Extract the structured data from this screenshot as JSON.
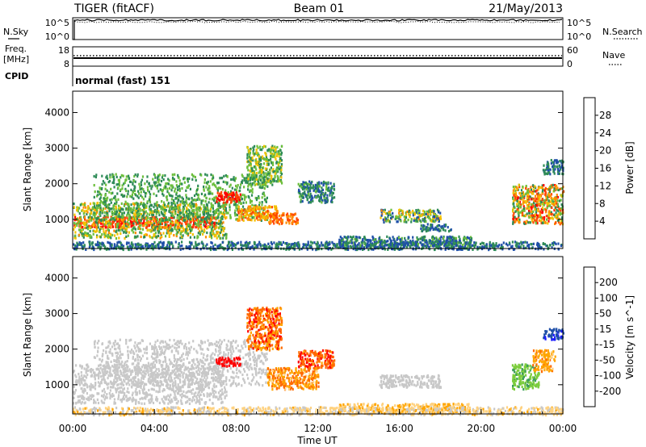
{
  "header": {
    "radar": "TIGER (fitACF)",
    "beam": "Beam 01",
    "date": "21/May/2013"
  },
  "top_panels": {
    "nsky_label": "N.Sky",
    "nsearch_label": "N.Search",
    "nsky_ticks": [
      "10^5",
      "10^0"
    ],
    "nsearch_ticks": [
      "10^5",
      "10^0"
    ],
    "freq_label_1": "Freq.",
    "freq_label_2": "[MHz]",
    "freq_ticks": [
      "18",
      "8"
    ],
    "nave_label": "Nave",
    "nave_ticks": [
      "60",
      "0"
    ],
    "cpid_label": "CPID",
    "cpid_text": "normal (fast) 151"
  },
  "colors": {
    "power": [
      "#1a1aff",
      "#1f4fa8",
      "#2e8b57",
      "#6cbf3c",
      "#f2c200",
      "#ff8c00",
      "#ff4500",
      "#ff0000"
    ],
    "velocity": [
      "#ff0000",
      "#ff6a00",
      "#ffa500",
      "#ffd280",
      "#c8c8c8",
      "#7ccd3c",
      "#3c9c5c",
      "#1f4fa8",
      "#1a1aff"
    ]
  },
  "chart_data": [
    {
      "type": "heatmap",
      "name": "power",
      "ylabel": "Slant Range [km]",
      "yticks": [
        "4000",
        "3000",
        "2000",
        "1000"
      ],
      "ylim": [
        180,
        4600
      ],
      "xlim": [
        0,
        24
      ],
      "colorbar_label": "Power [dB]",
      "colorbar_ticks": [
        "28",
        "24",
        "20",
        "16",
        "12",
        "8",
        "4"
      ],
      "colorbar_range": [
        0,
        32
      ],
      "bands": [
        {
          "t0": 0.0,
          "t1": 7.0,
          "r0": 800,
          "r1": 1100,
          "v0": 24,
          "v1": 30
        },
        {
          "t0": 0.0,
          "t1": 7.5,
          "r0": 500,
          "r1": 1500,
          "v0": 8,
          "v1": 22
        },
        {
          "t0": 1.0,
          "t1": 9.5,
          "r0": 1000,
          "r1": 2300,
          "v0": 8,
          "v1": 16
        },
        {
          "t0": 7.0,
          "t1": 8.2,
          "r0": 1500,
          "r1": 1800,
          "v0": 26,
          "v1": 30
        },
        {
          "t0": 8.0,
          "t1": 10.0,
          "r0": 1000,
          "r1": 1400,
          "v0": 16,
          "v1": 26
        },
        {
          "t0": 9.5,
          "t1": 11.0,
          "r0": 900,
          "r1": 1200,
          "v0": 20,
          "v1": 28
        },
        {
          "t0": 8.5,
          "t1": 10.2,
          "r0": 2000,
          "r1": 3100,
          "v0": 8,
          "v1": 18
        },
        {
          "t0": 11.0,
          "t1": 12.8,
          "r0": 1500,
          "r1": 2100,
          "v0": 4,
          "v1": 14
        },
        {
          "t0": 13.0,
          "t1": 19.5,
          "r0": 250,
          "r1": 550,
          "v0": 4,
          "v1": 14
        },
        {
          "t0": 15.0,
          "t1": 18.0,
          "r0": 950,
          "r1": 1300,
          "v0": 4,
          "v1": 22
        },
        {
          "t0": 17.0,
          "t1": 18.5,
          "r0": 700,
          "r1": 900,
          "v0": 4,
          "v1": 12
        },
        {
          "t0": 21.5,
          "t1": 24.0,
          "r0": 900,
          "r1": 2000,
          "v0": 8,
          "v1": 30
        },
        {
          "t0": 23.0,
          "t1": 24.0,
          "r0": 2300,
          "r1": 2700,
          "v0": 4,
          "v1": 12
        },
        {
          "t0": 0.0,
          "t1": 24.0,
          "r0": 180,
          "r1": 400,
          "v0": 4,
          "v1": 12
        }
      ]
    },
    {
      "type": "heatmap",
      "name": "velocity",
      "ylabel": "Slant Range [km]",
      "yticks": [
        "4000",
        "3000",
        "2000",
        "1000"
      ],
      "ylim": [
        180,
        4600
      ],
      "xlim": [
        0,
        24
      ],
      "xlabel": "Time UT",
      "xticks": [
        "00:00",
        "04:00",
        "08:00",
        "12:00",
        "16:00",
        "20:00",
        "00:00"
      ],
      "colorbar_label": "Velocity [m s^-1]",
      "colorbar_ticks": [
        "200",
        "100",
        "50",
        "15",
        "-15",
        "-50",
        "-100",
        "-200"
      ],
      "colorbar_range": [
        -250,
        250
      ],
      "bands": [
        {
          "t0": 0.0,
          "t1": 7.5,
          "r0": 500,
          "r1": 1600,
          "v0": -15,
          "v1": 15
        },
        {
          "t0": 1.0,
          "t1": 9.5,
          "r0": 1000,
          "r1": 2300,
          "v0": -15,
          "v1": 15
        },
        {
          "t0": 7.0,
          "t1": 8.2,
          "r0": 1550,
          "r1": 1800,
          "v0": -250,
          "v1": -200
        },
        {
          "t0": 8.5,
          "t1": 10.2,
          "r0": 2000,
          "r1": 3200,
          "v0": -250,
          "v1": -50
        },
        {
          "t0": 9.5,
          "t1": 12.0,
          "r0": 900,
          "r1": 1500,
          "v0": -150,
          "v1": -40
        },
        {
          "t0": 11.0,
          "t1": 12.8,
          "r0": 1500,
          "r1": 2000,
          "v0": -250,
          "v1": -80
        },
        {
          "t0": 13.0,
          "t1": 19.5,
          "r0": 250,
          "r1": 500,
          "v0": -80,
          "v1": -20
        },
        {
          "t0": 15.0,
          "t1": 18.0,
          "r0": 950,
          "r1": 1300,
          "v0": -15,
          "v1": 15
        },
        {
          "t0": 21.5,
          "t1": 22.8,
          "r0": 900,
          "r1": 1600,
          "v0": 15,
          "v1": 60
        },
        {
          "t0": 22.5,
          "t1": 23.6,
          "r0": 1400,
          "r1": 2000,
          "v0": -120,
          "v1": -40
        },
        {
          "t0": 23.0,
          "t1": 24.0,
          "r0": 2300,
          "r1": 2600,
          "v0": 100,
          "v1": 250
        },
        {
          "t0": 0.0,
          "t1": 24.0,
          "r0": 180,
          "r1": 400,
          "v0": -60,
          "v1": 10
        }
      ]
    }
  ]
}
